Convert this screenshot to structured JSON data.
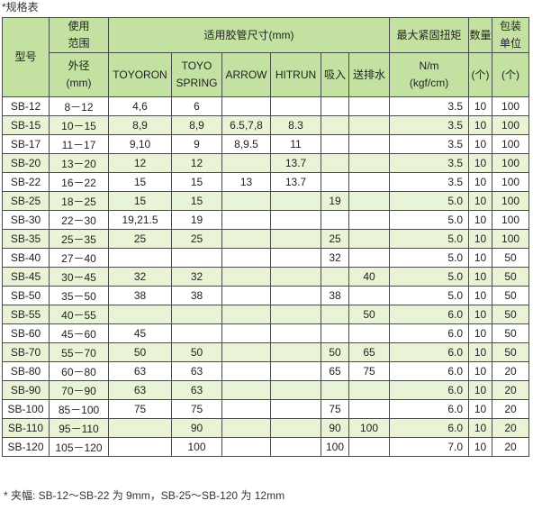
{
  "caption": "*规格表",
  "headers": {
    "model": "型号",
    "usage_range": "使用\n范围",
    "outer_diameter": "外径\n(mm)",
    "hose_size": "适用胶管尺寸(mm)",
    "toyoron": "TOYORON",
    "toyo_spring": "TOYO\nSPRING",
    "arrow": "ARROW",
    "hitrun": "HITRUN",
    "suction": "吸入",
    "discharge": "送排水",
    "torque": "最大紧固扭矩",
    "torque_unit": "N/m\n(kgf/cm)",
    "quantity": "数量",
    "quantity_unit": "(个)",
    "pack_unit": "包装\n单位",
    "pack_unit_unit": "(个)"
  },
  "rows": [
    {
      "model": "SB-12",
      "range": "8－12",
      "toyoron": "4,6",
      "spring": "6",
      "arrow": "",
      "hitrun": "",
      "suction": "",
      "discharge": "",
      "torque": "3.5",
      "qty": "10",
      "pack": "100",
      "shade": false
    },
    {
      "model": "SB-15",
      "range": "10－15",
      "toyoron": "8,9",
      "spring": "8,9",
      "arrow": "6.5,7,8",
      "hitrun": "8.3",
      "suction": "",
      "discharge": "",
      "torque": "3.5",
      "qty": "10",
      "pack": "100",
      "shade": true
    },
    {
      "model": "SB-17",
      "range": "11－17",
      "toyoron": "9,10",
      "spring": "9",
      "arrow": "8,9.5",
      "hitrun": "11",
      "suction": "",
      "discharge": "",
      "torque": "3.5",
      "qty": "10",
      "pack": "100",
      "shade": false
    },
    {
      "model": "SB-20",
      "range": "13－20",
      "toyoron": "12",
      "spring": "12",
      "arrow": "",
      "hitrun": "13.7",
      "suction": "",
      "discharge": "",
      "torque": "3.5",
      "qty": "10",
      "pack": "100",
      "shade": true
    },
    {
      "model": "SB-22",
      "range": "16－22",
      "toyoron": "15",
      "spring": "15",
      "arrow": "13",
      "hitrun": "13.7",
      "suction": "",
      "discharge": "",
      "torque": "3.5",
      "qty": "10",
      "pack": "100",
      "shade": false
    },
    {
      "model": "SB-25",
      "range": "18－25",
      "toyoron": "15",
      "spring": "15",
      "arrow": "",
      "hitrun": "",
      "suction": "19",
      "discharge": "",
      "torque": "5.0",
      "qty": "10",
      "pack": "100",
      "shade": true
    },
    {
      "model": "SB-30",
      "range": "22－30",
      "toyoron": "19,21.5",
      "spring": "19",
      "arrow": "",
      "hitrun": "",
      "suction": "",
      "discharge": "",
      "torque": "5.0",
      "qty": "10",
      "pack": "100",
      "shade": false
    },
    {
      "model": "SB-35",
      "range": "25－35",
      "toyoron": "25",
      "spring": "25",
      "arrow": "",
      "hitrun": "",
      "suction": "25",
      "discharge": "",
      "torque": "5.0",
      "qty": "10",
      "pack": "100",
      "shade": true
    },
    {
      "model": "SB-40",
      "range": "27－40",
      "toyoron": "",
      "spring": "",
      "arrow": "",
      "hitrun": "",
      "suction": "32",
      "discharge": "",
      "torque": "5.0",
      "qty": "10",
      "pack": "50",
      "shade": false
    },
    {
      "model": "SB-45",
      "range": "30－45",
      "toyoron": "32",
      "spring": "32",
      "arrow": "",
      "hitrun": "",
      "suction": "",
      "discharge": "40",
      "torque": "5.0",
      "qty": "10",
      "pack": "50",
      "shade": true
    },
    {
      "model": "SB-50",
      "range": "35－50",
      "toyoron": "38",
      "spring": "38",
      "arrow": "",
      "hitrun": "",
      "suction": "38",
      "discharge": "",
      "torque": "5.0",
      "qty": "10",
      "pack": "50",
      "shade": false
    },
    {
      "model": "SB-55",
      "range": "40－55",
      "toyoron": "",
      "spring": "",
      "arrow": "",
      "hitrun": "",
      "suction": "",
      "discharge": "50",
      "torque": "6.0",
      "qty": "10",
      "pack": "50",
      "shade": true
    },
    {
      "model": "SB-60",
      "range": "45－60",
      "toyoron": "45",
      "spring": "",
      "arrow": "",
      "hitrun": "",
      "suction": "",
      "discharge": "",
      "torque": "6.0",
      "qty": "10",
      "pack": "50",
      "shade": false
    },
    {
      "model": "SB-70",
      "range": "55－70",
      "toyoron": "50",
      "spring": "50",
      "arrow": "",
      "hitrun": "",
      "suction": "50",
      "discharge": "65",
      "torque": "6.0",
      "qty": "10",
      "pack": "50",
      "shade": true
    },
    {
      "model": "SB-80",
      "range": "60－80",
      "toyoron": "63",
      "spring": "63",
      "arrow": "",
      "hitrun": "",
      "suction": "65",
      "discharge": "75",
      "torque": "6.0",
      "qty": "10",
      "pack": "20",
      "shade": false
    },
    {
      "model": "SB-90",
      "range": "70－90",
      "toyoron": "63",
      "spring": "63",
      "arrow": "",
      "hitrun": "",
      "suction": "",
      "discharge": "",
      "torque": "6.0",
      "qty": "10",
      "pack": "20",
      "shade": true
    },
    {
      "model": "SB-100",
      "range": "85－100",
      "toyoron": "75",
      "spring": "75",
      "arrow": "",
      "hitrun": "",
      "suction": "75",
      "discharge": "",
      "torque": "6.0",
      "qty": "10",
      "pack": "20",
      "shade": false
    },
    {
      "model": "SB-110",
      "range": "95－110",
      "toyoron": "",
      "spring": "90",
      "arrow": "",
      "hitrun": "",
      "suction": "90",
      "discharge": "100",
      "torque": "6.0",
      "qty": "10",
      "pack": "20",
      "shade": true
    },
    {
      "model": "SB-120",
      "range": "105－120",
      "toyoron": "",
      "spring": "100",
      "arrow": "",
      "hitrun": "",
      "suction": "100",
      "discharge": "",
      "torque": "7.0",
      "qty": "10",
      "pack": "20",
      "shade": false
    }
  ],
  "footnote": "* 夹幅: SB-12～SB-22 为 9mm，SB-25～SB-120 为 12mm"
}
